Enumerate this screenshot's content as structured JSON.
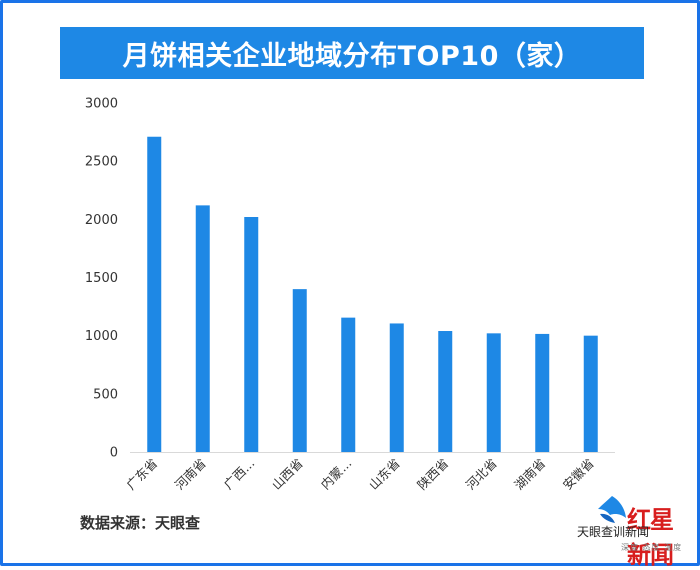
{
  "chart_data": {
    "type": "bar",
    "title": "月饼相关企业地域分布TOP10（家）",
    "categories": [
      "广东省",
      "河南省",
      "广西...",
      "山西省",
      "内蒙...",
      "山东省",
      "陕西省",
      "河北省",
      "湖南省",
      "安徽省"
    ],
    "values": [
      2710,
      2120,
      2020,
      1400,
      1155,
      1105,
      1040,
      1020,
      1015,
      1000
    ],
    "ylim": [
      0,
      3000
    ],
    "yticks": [
      0,
      500,
      1000,
      1500,
      2000,
      2500,
      3000
    ],
    "xlabel": "",
    "ylabel": "",
    "grid": false,
    "bar_color": "#1e88e5"
  },
  "source_text": "数据来源：天眼查",
  "watermark": {
    "brand": "红星新闻",
    "overlay": "天眼查训新闻",
    "slogan": "深度 态度 温度"
  },
  "colors": {
    "frame": "#1a73e8",
    "title_bg": "#1e88e5",
    "brand_red": "#d81e1e"
  }
}
